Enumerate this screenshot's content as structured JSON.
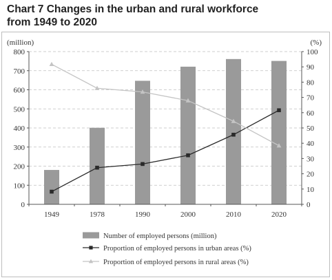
{
  "chart_data": {
    "type": "bar",
    "title_line1": "Chart 7 Changes in the urban and rural workforce",
    "title_line2": "from 1949 to 2020",
    "categories": [
      "1949",
      "1978",
      "1990",
      "2000",
      "2010",
      "2020"
    ],
    "left_axis": {
      "unit_label": "(million)",
      "ylim": [
        0,
        800
      ],
      "ticks": [
        "0",
        "100",
        "200",
        "300",
        "400",
        "500",
        "600",
        "700",
        "800"
      ]
    },
    "right_axis": {
      "unit_label": "(%)",
      "ylim": [
        0,
        100
      ],
      "ticks": [
        "0",
        "10",
        "20",
        "30",
        "40",
        "50",
        "60",
        "70",
        "80",
        "90",
        "100"
      ]
    },
    "series": [
      {
        "name": "Number of employed persons (million)",
        "type": "bar",
        "axis": "left",
        "color": "#9a9a9a",
        "values": [
          180,
          401,
          647,
          721,
          761,
          751
        ]
      },
      {
        "name": "Proportion of employed persons in urban areas (%)",
        "type": "line",
        "axis": "right",
        "marker": "square",
        "color": "#2a2a2a",
        "values": [
          8.3,
          24,
          26.4,
          32.1,
          45.6,
          61.6
        ]
      },
      {
        "name": "Proportion of employed persons in rural areas (%)",
        "type": "line",
        "axis": "right",
        "marker": "triangle",
        "color": "#c4c4c4",
        "values": [
          91.7,
          76,
          73.6,
          67.9,
          54.4,
          38.4
        ]
      }
    ],
    "grid": "horizontal dashed",
    "legend_position": "bottom"
  }
}
